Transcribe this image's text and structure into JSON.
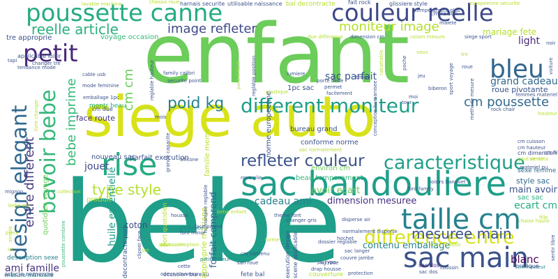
{
  "words": [
    {
      "text": "bebe",
      "color": "#1f9e89"
    },
    {
      "text": "siege auto",
      "color": "#d8e219"
    },
    {
      "text": "enfant",
      "color": "#6ccd5a"
    },
    {
      "text": "sac bandouliere",
      "color": "#1f9e89"
    },
    {
      "text": "poussette canne",
      "color": "#25ab82"
    },
    {
      "text": "couleur reelle",
      "color": "#3e4989"
    },
    {
      "text": "taille cm",
      "color": "#26828e"
    },
    {
      "text": "sac main",
      "color": "#3b528b"
    },
    {
      "text": "bleu",
      "color": "#31668e"
    },
    {
      "text": "petit",
      "color": "#482878"
    },
    {
      "text": "rise",
      "color": "#25ab82"
    },
    {
      "text": "different moniteur",
      "color": "#1f9e89"
    },
    {
      "text": "difference entre",
      "color": "#d8e219"
    },
    {
      "text": "bavoir bebe",
      "color": "#35b779"
    },
    {
      "text": "design elegant",
      "color": "#31688e"
    },
    {
      "text": "caracteristique",
      "color": "#1f9e89"
    },
    {
      "text": "refleter couleur",
      "color": "#3b528b"
    },
    {
      "text": "reelle article",
      "color": "#2ab07f"
    },
    {
      "text": "image refleter",
      "color": "#3e4989"
    },
    {
      "text": "moniteur image",
      "color": "#b5de2b"
    },
    {
      "text": "mesuree main",
      "color": "#3b528b"
    },
    {
      "text": "type style",
      "color": "#b5de2b"
    },
    {
      "text": "poid kg",
      "color": "#26828e"
    },
    {
      "text": "cm poussette",
      "color": "#31688e"
    },
    {
      "text": "bebe imprime",
      "color": "#35b779"
    },
    {
      "text": "entre different",
      "color": "#443983"
    },
    {
      "text": "grand cadeau",
      "color": "#31688e"
    },
    {
      "text": "light",
      "color": "#482878"
    },
    {
      "text": "mariage fete",
      "color": "#b5de2b"
    },
    {
      "text": "sac parfait",
      "color": "#39558c"
    },
    {
      "text": "jouet",
      "color": "#3e4989"
    },
    {
      "text": "cadeau ami",
      "color": "#26828e"
    },
    {
      "text": "ecart cm",
      "color": "#25ab82"
    },
    {
      "text": "main avoir",
      "color": "#3b528b"
    },
    {
      "text": "blanc",
      "color": "#440154"
    },
    {
      "text": "dimension mesuree",
      "color": "#46327e"
    },
    {
      "text": "avoir ecart",
      "color": "#6ccd5a"
    },
    {
      "text": "contenu emballage",
      "color": "#26828e"
    },
    {
      "text": "ami famille",
      "color": "#46327e"
    },
    {
      "text": "forfait comprend",
      "color": "#31688e"
    },
    {
      "text": "cm cm",
      "color": "#6ccd5a"
    },
    {
      "text": "coton",
      "color": "#3e4989"
    },
    {
      "text": "style sac",
      "color": "#31688e"
    },
    {
      "text": "sac sac",
      "color": "#2ab07f"
    },
    {
      "text": "beau temperament",
      "color": "#35b779"
    },
    {
      "text": "conforme norme",
      "color": "#3b528b"
    },
    {
      "text": "bureau grand",
      "color": "#3b528b"
    },
    {
      "text": "cm dimension",
      "color": "#3e4989"
    },
    {
      "text": "sexe femme",
      "color": "#31688e"
    },
    {
      "text": "environ cm",
      "color": "#6ccd5a"
    },
    {
      "text": "montr beau",
      "color": "#2ab07f"
    },
    {
      "text": "face route",
      "color": "#46327e"
    },
    {
      "text": "roue pivotante",
      "color": "#3b528b"
    },
    {
      "text": "tre approprie",
      "color": "#3b528b"
    },
    {
      "text": "voyage occasion",
      "color": "#35b779"
    },
    {
      "text": "famille meme",
      "color": "#b5de2b"
    },
    {
      "text": "huile essentielle",
      "color": "#1f9e89"
    },
    {
      "text": "quotidien voyage",
      "color": "#6ccd5a"
    },
    {
      "text": "nouveau sac",
      "color": "#3b528b"
    },
    {
      "text": "parfait execution",
      "color": "#3b528b"
    },
    {
      "text": "mesure manuelle",
      "color": "#26828e"
    },
    {
      "text": "description sexe",
      "color": "#26828e"
    },
    {
      "text": "article remercie",
      "color": "#3b528b"
    },
    {
      "text": "poussette combine",
      "color": "#35b779"
    },
    {
      "text": "decontracte port",
      "color": "#3b528b"
    },
    {
      "text": "occasion bureau",
      "color": "#3b528b"
    },
    {
      "text": "fete bal",
      "color": "#3b528b"
    },
    {
      "text": "couverture",
      "color": "#b5de2b"
    },
    {
      "text": "approprie mariage",
      "color": "#b5de2b"
    },
    {
      "text": "produit",
      "color": "#b5de2b"
    },
    {
      "text": "bal decontracte",
      "color": "#b5de2b"
    },
    {
      "text": "norme europeenne",
      "color": "#3b528b"
    },
    {
      "text": "harnais securite",
      "color": "#3b528b"
    },
    {
      "text": "utilisable naissance",
      "color": "#3b528b"
    },
    {
      "text": "glissiere style",
      "color": "#3b528b"
    },
    {
      "text": "cm raison",
      "color": "#3b528b"
    },
    {
      "text": "dimension cm",
      "color": "#3b528b"
    },
    {
      "text": "port quotidien",
      "color": "#b5de2b"
    },
    {
      "text": "1pc sac",
      "color": "#3b528b"
    },
    {
      "text": "cm pouce",
      "color": "#26828e"
    },
    {
      "text": "font family",
      "color": "#3b528b"
    },
    {
      "text": "sac dos",
      "color": "#46327e"
    },
    {
      "text": "chassis roue",
      "color": "#b5de2b"
    },
    {
      "text": "siege sport",
      "color": "#3b528b"
    },
    {
      "text": "fait rock",
      "color": "#3b528b"
    },
    {
      "text": "drap housse",
      "color": "#3b528b"
    },
    {
      "text": "odeur nouveau",
      "color": "#3b528b"
    },
    {
      "text": "hochet",
      "color": "#3b528b"
    },
    {
      "text": "petite odeur",
      "color": "#26828e"
    },
    {
      "text": "dossier reglable",
      "color": "#3b528b"
    },
    {
      "text": "sac langer",
      "color": "#3b528b"
    },
    {
      "text": "cm hauteur",
      "color": "#26828e"
    },
    {
      "text": "pratique",
      "color": "#3b528b"
    },
    {
      "text": "sac dos",
      "color": "#3b528b"
    },
    {
      "text": "protection",
      "color": "#3b528b"
    },
    {
      "text": "coussin",
      "color": "#3b528b"
    },
    {
      "text": "face parent",
      "color": "#3b528b"
    },
    {
      "text": "bebe enfant",
      "color": "#b5de2b"
    },
    {
      "text": "roue plie",
      "color": "#3b528b"
    },
    {
      "text": "silicone",
      "color": "#3b528b"
    },
    {
      "text": "lumiere",
      "color": "#3b528b"
    },
    {
      "text": "tetine",
      "color": "#3b528b"
    },
    {
      "text": "biberon",
      "color": "#3b528b"
    },
    {
      "text": "porte bebe",
      "color": "#3b528b"
    },
    {
      "text": "emballage 1pc",
      "color": "#3b528b"
    },
    {
      "text": "cable usb",
      "color": "#3b528b"
    },
    {
      "text": "mode feminine",
      "color": "#3b528b"
    },
    {
      "text": "applicable loisir",
      "color": "#3b528b"
    },
    {
      "text": "tapi",
      "color": "#3b528b"
    },
    {
      "text": "cm due",
      "color": "#3b528b"
    },
    {
      "text": "family calibri",
      "color": "#3b528b"
    },
    {
      "text": "securite point",
      "color": "#3b528b"
    },
    {
      "text": "mignon",
      "color": "#3b528b"
    },
    {
      "text": "collection",
      "color": "#b5de2b"
    },
    {
      "text": "accessoire",
      "color": "#b5de2b"
    },
    {
      "text": "theme font",
      "color": "#3b528b"
    },
    {
      "text": "font minor",
      "color": "#3b528b"
    },
    {
      "text": "plus conception",
      "color": "#b5de2b"
    },
    {
      "text": "execution design",
      "color": "#3b528b"
    },
    {
      "text": "scene applicable",
      "color": "#3b528b"
    },
    {
      "text": "normalement disperse",
      "color": "#3b528b"
    },
    {
      "text": "couvre jambe",
      "color": "#3b528b"
    },
    {
      "text": "cm contenu",
      "color": "#3b528b"
    },
    {
      "text": "san roue",
      "color": "#3b528b"
    },
    {
      "text": "roue chassis",
      "color": "#b5de2b"
    },
    {
      "text": "disperse air",
      "color": "#3b528b"
    },
    {
      "text": "changer gris",
      "color": "#3b528b"
    },
    {
      "text": "chaise haute",
      "color": "#b5de2b"
    },
    {
      "text": "confort",
      "color": "#b5de2b"
    },
    {
      "text": "fille",
      "color": "#b5de2b"
    },
    {
      "text": "piece",
      "color": "#b5de2b"
    },
    {
      "text": "cette",
      "color": "#3b528b"
    },
    {
      "text": "set",
      "color": "#b5de2b"
    },
    {
      "text": "lot",
      "color": "#b5de2b"
    },
    {
      "text": "due difference",
      "color": "#b5de2b"
    },
    {
      "text": "raison mesure",
      "color": "#b5de2b"
    },
    {
      "text": "temperament plus",
      "color": "#3b528b"
    },
    {
      "text": "tendance mode",
      "color": "#3b528b"
    },
    {
      "text": "mois",
      "color": "#3b528b"
    },
    {
      "text": "sac normalement",
      "color": "#b5de2b"
    },
    {
      "text": "loisirs banquet",
      "color": "#3b528b"
    },
    {
      "text": "gout sentir",
      "color": "#b5de2b"
    },
    {
      "text": "air nota",
      "color": "#b5de2b"
    },
    {
      "text": "materiel pu",
      "color": "#3b528b"
    },
    {
      "text": "rock chair",
      "color": "#3b528b"
    },
    {
      "text": "femmes materiel",
      "color": "#3b528b"
    },
    {
      "text": "facilement",
      "color": "#3b528b"
    },
    {
      "text": "permet",
      "color": "#3b528b"
    },
    {
      "text": "plastique",
      "color": "#b5de2b"
    },
    {
      "text": "conception humanisee",
      "color": "#3b528b"
    },
    {
      "text": "rabattable",
      "color": "#b5de2b"
    },
    {
      "text": "reglable hauteur",
      "color": "#3b528b"
    },
    {
      "text": "reglable position",
      "color": "#3b528b"
    },
    {
      "text": "parent face",
      "color": "#b5de2b"
    },
    {
      "text": "grande capacite",
      "color": "#3b528b"
    },
    {
      "text": "humanisee reglable",
      "color": "#3b528b"
    },
    {
      "text": "clipser face",
      "color": "#3b528b"
    },
    {
      "text": "housse",
      "color": "#3b528b"
    },
    {
      "text": "bebe ete",
      "color": "#b5de2b"
    },
    {
      "text": "simple",
      "color": "#b5de2b"
    },
    {
      "text": "sentir libre",
      "color": "#3b528b"
    },
    {
      "text": "livre changer",
      "color": "#b5de2b"
    },
    {
      "text": "vous",
      "color": "#b5de2b"
    },
    {
      "text": "jeu",
      "color": "#3b528b"
    },
    {
      "text": "lavable machine",
      "color": "#b5de2b"
    },
    {
      "text": "methode mesure",
      "color": "#3b528b"
    },
    {
      "text": "europeenne securite",
      "color": "#b5de2b"
    },
    {
      "text": "cm cuisson",
      "color": "#3b528b"
    },
    {
      "text": "cm hauteur",
      "color": "#3b528b"
    },
    {
      "text": "hauteur",
      "color": "#b5de2b"
    },
    {
      "text": "cm fil",
      "color": "#3b528b"
    },
    {
      "text": "forme",
      "color": "#b5de2b"
    },
    {
      "text": "kg roue",
      "color": "#3b528b"
    },
    {
      "text": "pu type",
      "color": "#3b528b"
    },
    {
      "text": "noir",
      "color": "#3b528b"
    },
    {
      "text": "sport voyage",
      "color": "#3b528b"
    },
    {
      "text": "voiture",
      "color": "#3b528b"
    },
    {
      "text": "poche",
      "color": "#3b528b"
    },
    {
      "text": "tre",
      "color": "#b5de2b"
    },
    {
      "text": "tour",
      "color": "#3b528b"
    },
    {
      "text": "moi",
      "color": "#3b528b"
    },
    {
      "text": "changer tre",
      "color": "#3b528b"
    },
    {
      "text": "roue",
      "color": "#3b528b"
    },
    {
      "text": "malete",
      "color": "#3b528b"
    }
  ]
}
